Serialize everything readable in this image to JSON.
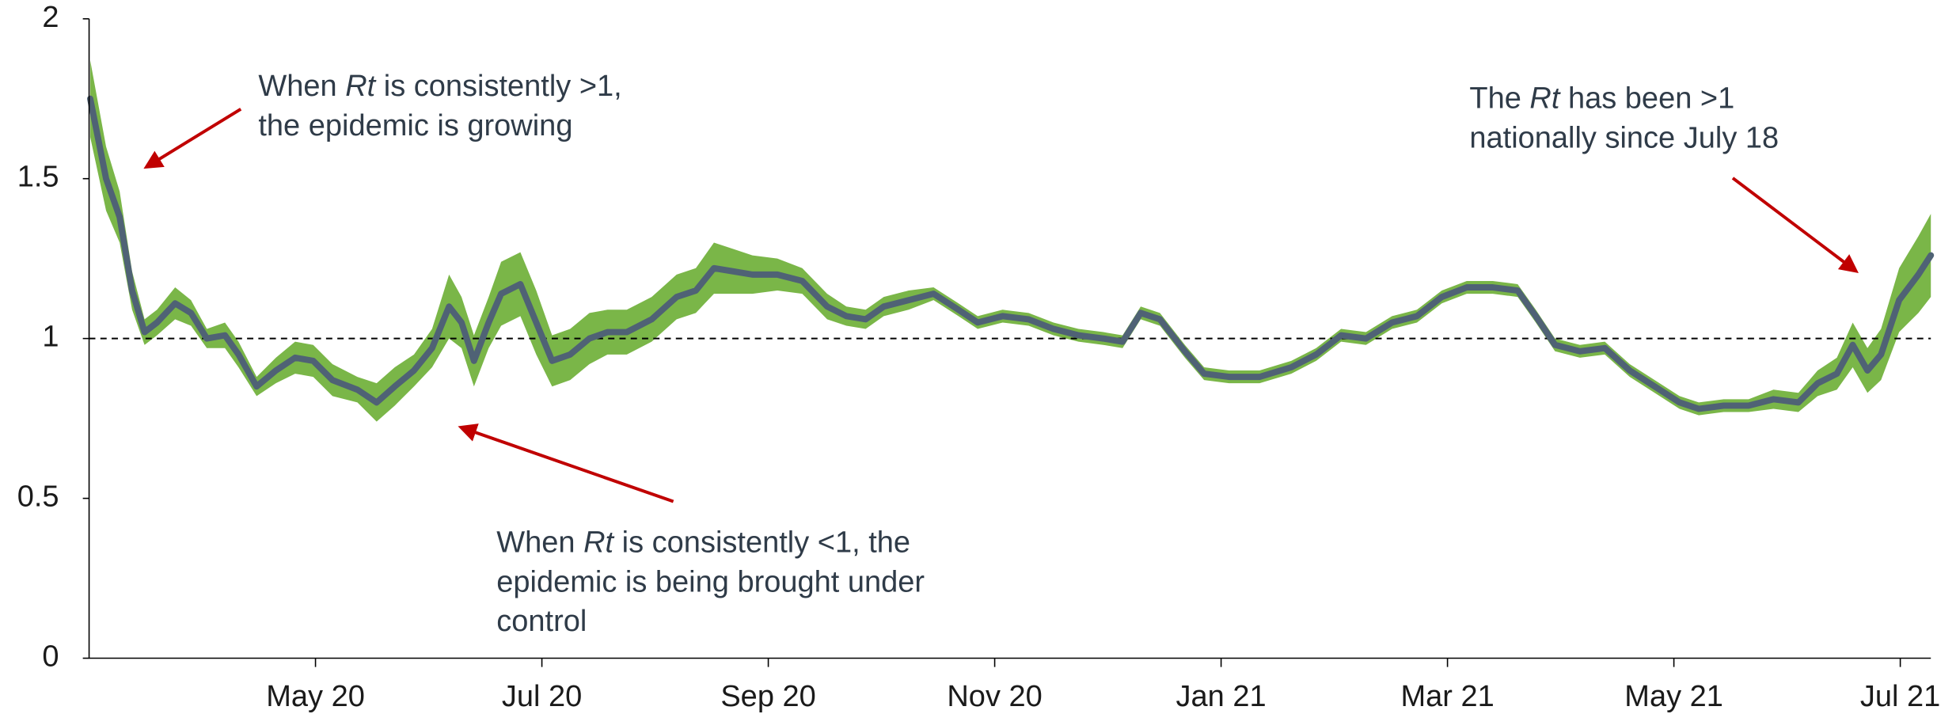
{
  "chart_data": {
    "type": "line",
    "x": [
      0.01,
      0.15,
      0.27,
      0.38,
      0.49,
      0.6,
      0.76,
      0.9,
      1.04,
      1.2,
      1.32,
      1.48,
      1.65,
      1.82,
      1.98,
      2.15,
      2.37,
      2.54,
      2.7,
      2.87,
      3.03,
      3.18,
      3.29,
      3.4,
      3.53,
      3.64,
      3.81,
      3.95,
      4.09,
      4.25,
      4.42,
      4.58,
      4.75,
      4.97,
      5.19,
      5.36,
      5.52,
      5.69,
      5.86,
      6.08,
      6.3,
      6.52,
      6.69,
      6.86,
      7.02,
      7.24,
      7.46,
      7.68,
      7.85,
      8.07,
      8.3,
      8.52,
      8.74,
      8.96,
      9.13,
      9.29,
      9.46,
      9.68,
      9.85,
      10.07,
      10.34,
      10.62,
      10.84,
      11.06,
      11.28,
      11.51,
      11.73,
      11.95,
      12.17,
      12.4,
      12.62,
      12.78,
      12.95,
      13.17,
      13.39,
      13.61,
      13.83,
      14.05,
      14.22,
      14.44,
      14.66,
      14.88,
      15.1,
      15.27,
      15.44,
      15.58,
      15.71,
      15.83,
      15.99,
      16.16,
      16.27
    ],
    "series": [
      {
        "color": "#4f6275",
        "values": [
          1.75,
          1.5,
          1.38,
          1.15,
          1.02,
          1.05,
          1.11,
          1.08,
          1.0,
          1.01,
          0.95,
          0.85,
          0.9,
          0.94,
          0.93,
          0.87,
          0.84,
          0.8,
          0.85,
          0.9,
          0.97,
          1.1,
          1.05,
          0.93,
          1.05,
          1.14,
          1.17,
          1.05,
          0.93,
          0.95,
          1.0,
          1.02,
          1.02,
          1.06,
          1.13,
          1.15,
          1.22,
          1.21,
          1.2,
          1.2,
          1.18,
          1.1,
          1.07,
          1.06,
          1.1,
          1.12,
          1.14,
          1.09,
          1.05,
          1.07,
          1.06,
          1.03,
          1.01,
          1.0,
          0.99,
          1.08,
          1.06,
          0.96,
          0.89,
          0.88,
          0.88,
          0.91,
          0.95,
          1.01,
          1.0,
          1.05,
          1.07,
          1.13,
          1.16,
          1.16,
          1.15,
          1.07,
          0.98,
          0.96,
          0.97,
          0.9,
          0.85,
          0.8,
          0.78,
          0.79,
          0.79,
          0.81,
          0.8,
          0.86,
          0.89,
          0.98,
          0.9,
          0.95,
          1.12,
          1.2,
          1.26
        ]
      }
    ],
    "band": {
      "color": "#7ab648",
      "lower": [
        1.63,
        1.4,
        1.3,
        1.09,
        0.98,
        1.01,
        1.06,
        1.04,
        0.97,
        0.97,
        0.91,
        0.82,
        0.86,
        0.89,
        0.88,
        0.82,
        0.8,
        0.74,
        0.79,
        0.85,
        0.91,
        1.0,
        0.97,
        0.85,
        0.97,
        1.04,
        1.07,
        0.95,
        0.85,
        0.87,
        0.92,
        0.95,
        0.95,
        0.99,
        1.06,
        1.08,
        1.14,
        1.14,
        1.14,
        1.15,
        1.14,
        1.06,
        1.04,
        1.03,
        1.07,
        1.09,
        1.12,
        1.07,
        1.03,
        1.05,
        1.04,
        1.01,
        0.99,
        0.98,
        0.97,
        1.06,
        1.04,
        0.94,
        0.87,
        0.86,
        0.86,
        0.89,
        0.93,
        0.99,
        0.98,
        1.03,
        1.05,
        1.11,
        1.14,
        1.14,
        1.13,
        1.05,
        0.96,
        0.94,
        0.95,
        0.88,
        0.83,
        0.78,
        0.76,
        0.77,
        0.77,
        0.78,
        0.77,
        0.82,
        0.84,
        0.91,
        0.83,
        0.87,
        1.02,
        1.08,
        1.13
      ],
      "upper": [
        1.87,
        1.6,
        1.46,
        1.21,
        1.06,
        1.09,
        1.16,
        1.12,
        1.03,
        1.05,
        0.99,
        0.88,
        0.94,
        0.99,
        0.98,
        0.92,
        0.88,
        0.86,
        0.91,
        0.95,
        1.03,
        1.2,
        1.13,
        1.01,
        1.13,
        1.24,
        1.27,
        1.15,
        1.01,
        1.03,
        1.08,
        1.09,
        1.09,
        1.13,
        1.2,
        1.22,
        1.3,
        1.28,
        1.26,
        1.25,
        1.22,
        1.14,
        1.1,
        1.09,
        1.13,
        1.15,
        1.16,
        1.11,
        1.07,
        1.09,
        1.08,
        1.05,
        1.03,
        1.02,
        1.01,
        1.1,
        1.08,
        0.98,
        0.91,
        0.9,
        0.9,
        0.93,
        0.97,
        1.03,
        1.02,
        1.07,
        1.09,
        1.15,
        1.18,
        1.18,
        1.17,
        1.09,
        1.0,
        0.98,
        0.99,
        0.92,
        0.87,
        0.82,
        0.8,
        0.81,
        0.81,
        0.84,
        0.83,
        0.9,
        0.94,
        1.05,
        0.97,
        1.03,
        1.22,
        1.32,
        1.39
      ]
    },
    "reference_line": 1,
    "xlim": [
      0,
      16.27
    ],
    "xticks": [
      {
        "value": 2,
        "label": "May 20"
      },
      {
        "value": 4,
        "label": "Jul 20"
      },
      {
        "value": 6,
        "label": "Sep 20"
      },
      {
        "value": 8,
        "label": "Nov 20"
      },
      {
        "value": 10,
        "label": "Jan 21"
      },
      {
        "value": 12,
        "label": "Mar 21"
      },
      {
        "value": 14,
        "label": "May 21"
      },
      {
        "value": 16,
        "label": "Jul 21"
      }
    ],
    "ylim": [
      0,
      2
    ],
    "yticks": [
      0,
      0.5,
      1,
      1.5,
      2
    ],
    "annotations": [
      {
        "lines": [
          [
            "When ",
            "Rt",
            " is consistently >1,"
          ],
          [
            "the epidemic is growing"
          ]
        ]
      },
      {
        "lines": [
          [
            "When ",
            "Rt",
            " is consistently <1, the"
          ],
          [
            "epidemic is being brought under"
          ],
          [
            "control"
          ]
        ]
      },
      {
        "lines": [
          [
            "The ",
            "Rt",
            " has been >1"
          ],
          [
            "nationally since July 18"
          ]
        ]
      }
    ]
  }
}
